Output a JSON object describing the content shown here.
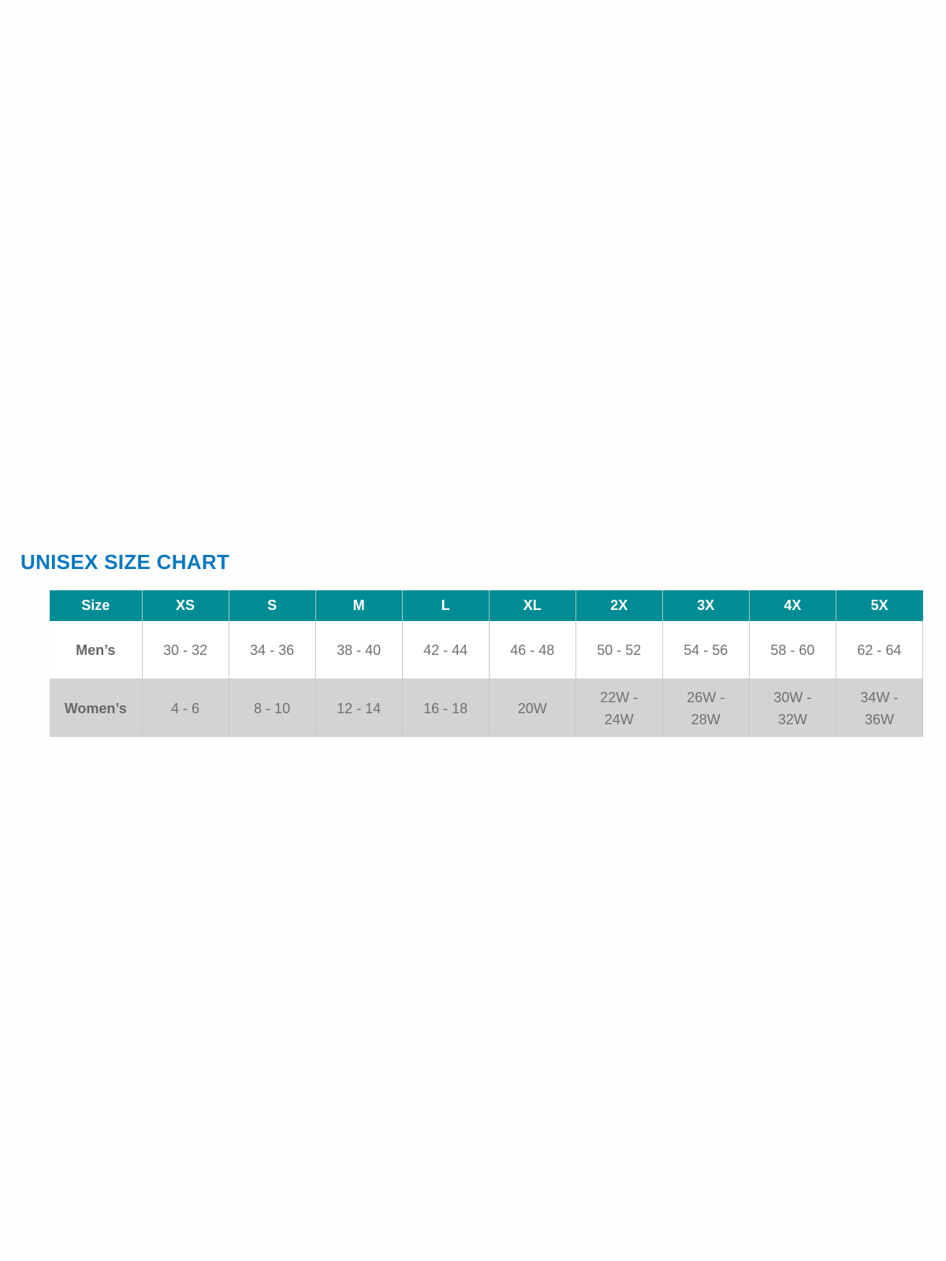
{
  "title": "UNISEX SIZE CHART",
  "colors": {
    "title": "#0b78bf",
    "header_bg": "#008c94",
    "women_row_bg": "#d3d3d6",
    "text": "#707070"
  },
  "table": {
    "headers": [
      "Size",
      "XS",
      "S",
      "M",
      "L",
      "XL",
      "2X",
      "3X",
      "4X",
      "5X"
    ],
    "rows": [
      {
        "label": "Men’s",
        "values": [
          "30 - 32",
          "34 - 36",
          "38 - 40",
          "42 - 44",
          "46 - 48",
          "50 - 52",
          "54 - 56",
          "58 - 60",
          "62 - 64"
        ]
      },
      {
        "label": "Women’s",
        "values": [
          "4 - 6",
          "8 - 10",
          "12 - 14",
          "16 - 18",
          "20W",
          "22W - 24W",
          "26W - 28W",
          "30W - 32W",
          "34W - 36W"
        ]
      }
    ]
  }
}
